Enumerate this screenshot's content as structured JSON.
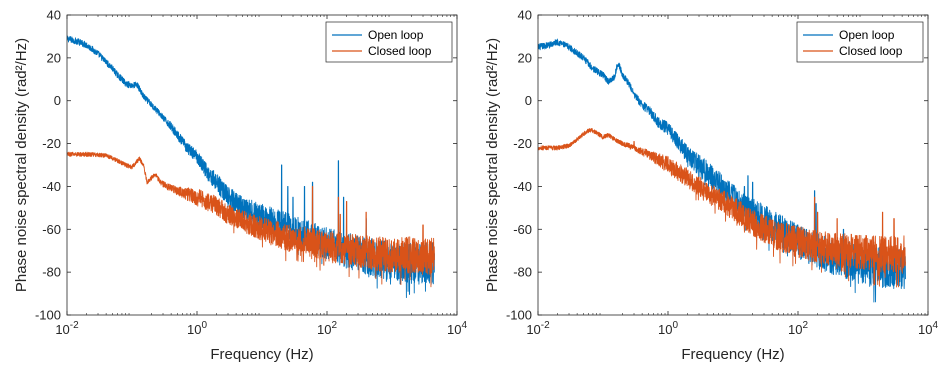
{
  "chart_data": [
    {
      "type": "line",
      "xscale": "log",
      "xlim": [
        0.01,
        10000
      ],
      "ylim": [
        -100,
        40
      ],
      "xlabel": "Frequency (Hz)",
      "ylabel": "Phase noise spectral density (rad²/Hz)",
      "x_ticks": [
        {
          "value": 0.01,
          "base": "10",
          "exp": "-2"
        },
        {
          "value": 1,
          "base": "10",
          "exp": "0"
        },
        {
          "value": 100,
          "base": "10",
          "exp": "2"
        },
        {
          "value": 10000,
          "base": "10",
          "exp": "4"
        }
      ],
      "y_ticks": [
        40,
        20,
        0,
        -20,
        -40,
        -60,
        -80,
        -100
      ],
      "legend_position": "top-right",
      "series": [
        {
          "name": "Open loop",
          "color": "#0072BD",
          "points": [
            [
              0.01,
              29
            ],
            [
              0.015,
              27.5
            ],
            [
              0.02,
              26
            ],
            [
              0.03,
              22
            ],
            [
              0.04,
              18
            ],
            [
              0.05,
              15
            ],
            [
              0.06,
              12
            ],
            [
              0.07,
              10
            ],
            [
              0.08,
              8
            ],
            [
              0.1,
              7
            ],
            [
              0.12,
              7.5
            ],
            [
              0.15,
              2
            ],
            [
              0.2,
              -2
            ],
            [
              0.25,
              -5
            ],
            [
              0.3,
              -8
            ],
            [
              0.4,
              -12
            ],
            [
              0.5,
              -16
            ],
            [
              0.7,
              -22
            ],
            [
              1,
              -26
            ],
            [
              1.5,
              -34
            ],
            [
              2,
              -38
            ],
            [
              3,
              -45
            ],
            [
              5,
              -50
            ],
            [
              10,
              -54
            ],
            [
              20,
              -58
            ],
            [
              50,
              -63
            ],
            [
              100,
              -67
            ],
            [
              200,
              -70
            ],
            [
              500,
              -73
            ],
            [
              1000,
              -75
            ],
            [
              2000,
              -76
            ],
            [
              4500,
              -76
            ]
          ],
          "noise_band": [
            [
              0.3,
              1.5
            ],
            [
              1,
              3
            ],
            [
              3,
              5
            ],
            [
              10,
              6
            ],
            [
              100,
              8
            ],
            [
              4500,
              10
            ]
          ],
          "spikes": [
            [
              20,
              -30
            ],
            [
              25,
              -40
            ],
            [
              30,
              -45
            ],
            [
              45,
              -40
            ],
            [
              60,
              -38
            ],
            [
              150,
              -28
            ],
            [
              180,
              -45
            ],
            [
              400,
              -55
            ]
          ]
        },
        {
          "name": "Closed loop",
          "color": "#D95319",
          "points": [
            [
              0.01,
              -25
            ],
            [
              0.02,
              -25
            ],
            [
              0.04,
              -25.5
            ],
            [
              0.06,
              -28
            ],
            [
              0.08,
              -30
            ],
            [
              0.1,
              -31
            ],
            [
              0.13,
              -27
            ],
            [
              0.15,
              -30
            ],
            [
              0.17,
              -38
            ],
            [
              0.2,
              -36
            ],
            [
              0.23,
              -34
            ],
            [
              0.27,
              -38
            ],
            [
              0.35,
              -40
            ],
            [
              0.5,
              -42
            ],
            [
              1,
              -45
            ],
            [
              2,
              -49
            ],
            [
              3,
              -53
            ],
            [
              5,
              -56
            ],
            [
              10,
              -60
            ],
            [
              20,
              -63
            ],
            [
              50,
              -66
            ],
            [
              100,
              -68
            ],
            [
              200,
              -69
            ],
            [
              500,
              -71
            ],
            [
              1000,
              -72
            ],
            [
              2000,
              -72
            ],
            [
              4500,
              -73
            ]
          ],
          "noise_band": [
            [
              0.2,
              1
            ],
            [
              0.5,
              2
            ],
            [
              1,
              4
            ],
            [
              5,
              5
            ],
            [
              50,
              7
            ],
            [
              4500,
              9
            ]
          ],
          "spikes": [
            [
              60,
              -40
            ],
            [
              150,
              -45
            ],
            [
              160,
              -53
            ],
            [
              200,
              -47
            ],
            [
              400,
              -52
            ],
            [
              3000,
              -58
            ]
          ]
        }
      ]
    },
    {
      "type": "line",
      "xscale": "log",
      "xlim": [
        0.01,
        10000
      ],
      "ylim": [
        -100,
        40
      ],
      "xlabel": "Frequency (Hz)",
      "ylabel": "Phase noise spectral density (rad²/Hz)",
      "x_ticks": [
        {
          "value": 0.01,
          "base": "10",
          "exp": "-2"
        },
        {
          "value": 1,
          "base": "10",
          "exp": "0"
        },
        {
          "value": 100,
          "base": "10",
          "exp": "2"
        },
        {
          "value": 10000,
          "base": "10",
          "exp": "4"
        }
      ],
      "y_ticks": [
        40,
        20,
        0,
        -20,
        -40,
        -60,
        -80,
        -100
      ],
      "legend_position": "top-right",
      "series": [
        {
          "name": "Open loop",
          "color": "#0072BD",
          "points": [
            [
              0.01,
              25
            ],
            [
              0.015,
              26
            ],
            [
              0.02,
              27.5
            ],
            [
              0.03,
              25
            ],
            [
              0.05,
              20
            ],
            [
              0.07,
              15
            ],
            [
              0.1,
              12
            ],
            [
              0.12,
              9
            ],
            [
              0.15,
              11
            ],
            [
              0.17,
              18
            ],
            [
              0.2,
              12
            ],
            [
              0.25,
              8
            ],
            [
              0.3,
              3
            ],
            [
              0.4,
              -2
            ],
            [
              0.5,
              -4
            ],
            [
              0.7,
              -10
            ],
            [
              1,
              -13
            ],
            [
              1.5,
              -20
            ],
            [
              2,
              -25
            ],
            [
              3,
              -30
            ],
            [
              5,
              -36
            ],
            [
              10,
              -45
            ],
            [
              20,
              -52
            ],
            [
              50,
              -60
            ],
            [
              100,
              -66
            ],
            [
              200,
              -70
            ],
            [
              500,
              -74
            ],
            [
              1000,
              -77
            ],
            [
              2000,
              -78
            ],
            [
              4500,
              -78
            ]
          ],
          "noise_band": [
            [
              0.3,
              1.5
            ],
            [
              1,
              3
            ],
            [
              3,
              5
            ],
            [
              10,
              6
            ],
            [
              100,
              8
            ],
            [
              4500,
              10
            ]
          ],
          "spikes": [
            [
              0.5,
              -4
            ],
            [
              1,
              -14
            ],
            [
              15,
              -40
            ],
            [
              17,
              -35
            ],
            [
              20,
              -38
            ],
            [
              180,
              -42
            ],
            [
              190,
              -48
            ],
            [
              500,
              -60
            ]
          ]
        },
        {
          "name": "Closed loop",
          "color": "#D95319",
          "points": [
            [
              0.01,
              -22
            ],
            [
              0.02,
              -22
            ],
            [
              0.03,
              -21
            ],
            [
              0.04,
              -18
            ],
            [
              0.05,
              -15.5
            ],
            [
              0.06,
              -14
            ],
            [
              0.07,
              -14
            ],
            [
              0.08,
              -15
            ],
            [
              0.1,
              -17
            ],
            [
              0.12,
              -16
            ],
            [
              0.15,
              -18
            ],
            [
              0.2,
              -20
            ],
            [
              0.3,
              -22
            ],
            [
              0.5,
              -25
            ],
            [
              1,
              -30
            ],
            [
              2,
              -36
            ],
            [
              3,
              -40
            ],
            [
              5,
              -44
            ],
            [
              10,
              -50
            ],
            [
              20,
              -57
            ],
            [
              50,
              -63
            ],
            [
              100,
              -66
            ],
            [
              200,
              -68
            ],
            [
              500,
              -70
            ],
            [
              1000,
              -71
            ],
            [
              2000,
              -72
            ],
            [
              4500,
              -72
            ]
          ],
          "noise_band": [
            [
              0.2,
              1
            ],
            [
              0.5,
              2
            ],
            [
              1,
              4
            ],
            [
              5,
              5
            ],
            [
              50,
              7
            ],
            [
              4500,
              9
            ]
          ],
          "spikes": [
            [
              0.3,
              -19
            ],
            [
              5,
              -45
            ],
            [
              10,
              -48
            ],
            [
              180,
              -45
            ],
            [
              200,
              -52
            ],
            [
              400,
              -55
            ],
            [
              2000,
              -52
            ],
            [
              3000,
              -55
            ]
          ]
        }
      ]
    }
  ]
}
